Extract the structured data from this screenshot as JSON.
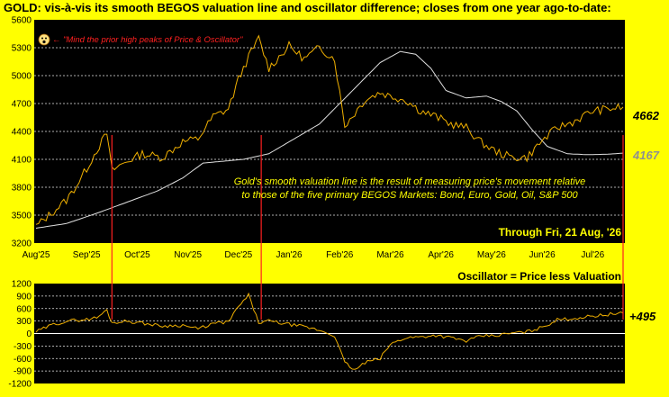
{
  "title": "GOLD:  vis-à-vis its smooth BEGOS valuation line and oscillator difference; closes from one year ago-to-date:",
  "colors": {
    "background": "#ffff00",
    "plot_bg": "#000000",
    "price": "#f0b000",
    "valuation": "#e0e0e0",
    "marker": "#ff2020",
    "grid": "#f0f0f0"
  },
  "annotation": "\"Mind the prior high peaks of Price & Oscillator\"",
  "annotation_icon": "smiley-face-icon",
  "note_lines": [
    "Gold's smooth valuation line is the result of measuring price's movement relative",
    "to those of the five primary BEGOS Markets:  Bond, Euro, Gold, Oil, S&P 500"
  ],
  "through_label": "Through Fri, 21 Aug, '26",
  "oscillator_label": "Oscillator = Price less Valuation",
  "last_price_label": "4662",
  "last_valuation_label": "4167",
  "last_oscillator_label": "+495",
  "chart_data": [
    {
      "type": "line",
      "name": "price-panel",
      "x_ticks": [
        "Aug'25",
        "Sep'25",
        "Oct'25",
        "Nov'25",
        "Dec'25",
        "Jan'26",
        "Feb'26",
        "Mar'26",
        "Apr'26",
        "May'26",
        "Jun'26",
        "Jul'26"
      ],
      "y_ticks": [
        3200,
        3500,
        3800,
        4100,
        4400,
        4700,
        5000,
        5300,
        5600
      ],
      "ylim": [
        3200,
        5600
      ],
      "grid": true,
      "x_index": [
        0,
        0.5,
        1,
        1.5,
        2,
        2.5,
        3,
        3.5,
        4,
        4.5,
        5,
        5.5,
        6,
        6.4,
        7,
        7.5,
        8,
        8.5,
        9,
        9.5,
        10,
        10.3,
        10.7,
        11,
        11.3,
        11.6
      ],
      "series": [
        {
          "values": [
            3380,
            3520,
            3660,
            3820,
            4000,
            4200,
            4380,
            3980,
            4080,
            4160,
            4120,
            4290,
            4320,
            4560,
            4640,
            4960,
            5200,
            5400,
            5080,
            5320,
            5180,
            5300,
            5180,
            4460,
            4740,
            4820,
            4780,
            4740,
            4620,
            4560,
            4480,
            4440,
            4280,
            4180,
            4120,
            4120,
            4300,
            4440,
            4500,
            4620,
            4662
          ],
          "x": [
            0,
            0.3,
            0.6,
            0.8,
            1.0,
            1.2,
            1.4,
            1.5,
            1.8,
            2.1,
            2.5,
            2.9,
            3.2,
            3.5,
            3.8,
            4.0,
            4.2,
            4.4,
            4.6,
            5.0,
            5.3,
            5.6,
            5.9,
            6.1,
            6.5,
            6.8,
            7.0,
            7.3,
            7.6,
            7.9,
            8.2,
            8.5,
            8.8,
            9.1,
            9.4,
            9.7,
            10.0,
            10.3,
            10.6,
            11.0,
            11.6
          ]
        },
        {
          "values": [
            3360,
            3410,
            3520,
            3640,
            3760,
            3900,
            4060,
            4080,
            4100,
            4160,
            4320,
            4480,
            4700,
            4920,
            5140,
            5260,
            5230,
            5080,
            4840,
            4760,
            4780,
            4720,
            4620,
            4420,
            4240,
            4160,
            4150,
            4155,
            4167
          ],
          "x": [
            0,
            0.6,
            1.2,
            1.8,
            2.4,
            2.9,
            3.3,
            3.7,
            4.1,
            4.6,
            5.1,
            5.6,
            6.0,
            6.4,
            6.8,
            7.2,
            7.5,
            7.8,
            8.1,
            8.5,
            8.9,
            9.2,
            9.5,
            9.8,
            10.1,
            10.5,
            10.9,
            11.3,
            11.6
          ]
        }
      ]
    },
    {
      "type": "line",
      "name": "oscillator-panel",
      "y_ticks": [
        1200,
        900,
        600,
        300,
        0,
        -300,
        -600,
        -900,
        -1200
      ],
      "ylim": [
        -1200,
        1200
      ],
      "grid": true,
      "x": [
        0,
        0.3,
        0.6,
        0.8,
        1.0,
        1.2,
        1.4,
        1.5,
        1.8,
        2.1,
        2.5,
        2.9,
        3.2,
        3.5,
        3.8,
        4.0,
        4.2,
        4.4,
        4.6,
        5.0,
        5.3,
        5.6,
        5.9,
        6.1,
        6.3,
        6.5,
        6.8,
        7.0,
        7.3,
        7.6,
        7.9,
        8.2,
        8.5,
        8.8,
        9.1,
        9.4,
        9.7,
        10.0,
        10.3,
        10.6,
        11.0,
        11.6
      ],
      "values": [
        40,
        200,
        300,
        320,
        340,
        380,
        560,
        260,
        300,
        250,
        180,
        200,
        110,
        240,
        280,
        640,
        920,
        260,
        300,
        220,
        160,
        80,
        -50,
        -700,
        -880,
        -700,
        -600,
        -260,
        -100,
        -80,
        -40,
        -100,
        -180,
        -60,
        -50,
        10,
        40,
        150,
        330,
        360,
        420,
        495
      ]
    }
  ],
  "peak_markers_x": [
    1.5,
    4.45,
    11.6
  ]
}
